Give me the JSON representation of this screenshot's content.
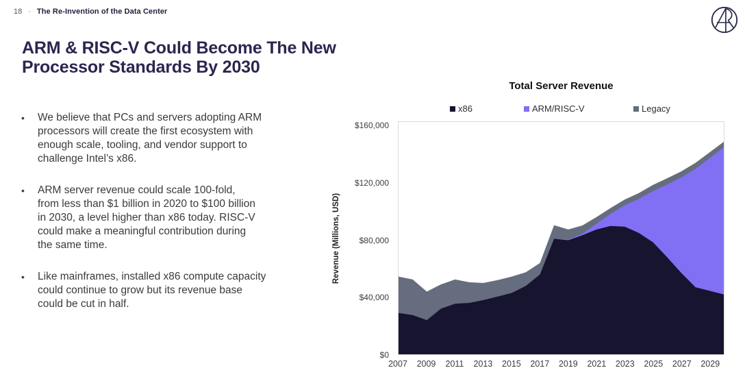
{
  "header": {
    "page_number": "18",
    "separator": "·",
    "booklet_title": "The Re-Invention of the Data Center"
  },
  "logo": {
    "name": "ark-logo"
  },
  "title": {
    "line1": "ARM & RISC-V Could Become The New",
    "line2": "Processor Standards By 2030"
  },
  "bullet_marker": "•",
  "bullets": [
    {
      "lines": [
        "We believe that PCs and servers adopting ARM",
        "processors will create the first ecosystem with",
        "enough scale, tooling, and vendor support to",
        "challenge Intel’s x86."
      ]
    },
    {
      "lines": [
        "ARM server revenue could scale 100-fold,",
        "from less than $1 billion in 2020 to $100 billion",
        "in 2030, a level higher than x86 today. RISC-V",
        "could make a meaningful contribution during",
        "the same time."
      ]
    },
    {
      "lines": [
        "Like mainframes, installed x86 compute capacity",
        "could continue to grow but its revenue base",
        "could be cut in half."
      ]
    }
  ],
  "colors": {
    "x86": "#16142f",
    "arm_risc_v": "#8170f4",
    "legacy": "#666d7e",
    "title_navy": "#2a264f",
    "plot_border": "#d9d9d9"
  },
  "chart_data": {
    "type": "area",
    "stacked": true,
    "title": "Total Server Revenue",
    "xlabel": "",
    "ylabel": "Revenue (Millions, USD)",
    "ylim": [
      0,
      160000
    ],
    "grid": false,
    "legend_position": "top",
    "ytick_values": [
      0,
      40000,
      80000,
      120000,
      160000
    ],
    "ytick_labels": [
      "$0",
      "$40,000",
      "$80,000",
      "$120,000",
      "$160,000"
    ],
    "xticks": [
      2007,
      2009,
      2011,
      2013,
      2015,
      2017,
      2019,
      2021,
      2023,
      2025,
      2027,
      2029
    ],
    "x": [
      2007,
      2008,
      2009,
      2010,
      2011,
      2012,
      2013,
      2014,
      2015,
      2016,
      2017,
      2018,
      2019,
      2020,
      2021,
      2022,
      2023,
      2024,
      2025,
      2026,
      2027,
      2028,
      2029,
      2030
    ],
    "series": [
      {
        "name": "x86",
        "color": "#16142f",
        "values": [
          29000,
          27500,
          24000,
          32000,
          35500,
          36000,
          38000,
          40500,
          43000,
          48000,
          56000,
          81000,
          80000,
          83500,
          87500,
          90000,
          89500,
          85000,
          78500,
          68000,
          57000,
          47000,
          44500,
          42000
        ]
      },
      {
        "name": "ARM/RISC-V",
        "color": "#8170f4",
        "values": [
          0,
          0,
          0,
          0,
          0,
          0,
          0,
          0,
          0,
          0,
          0,
          0,
          500,
          1000,
          4000,
          8500,
          15000,
          24000,
          36000,
          51000,
          67000,
          83000,
          93000,
          103000
        ]
      },
      {
        "name": "Legacy",
        "color": "#666d7e",
        "values": [
          25500,
          25000,
          20000,
          17000,
          17000,
          14500,
          12000,
          11500,
          11500,
          9500,
          8000,
          9500,
          7000,
          5800,
          4700,
          4100,
          4000,
          4100,
          4300,
          4400,
          4300,
          4200,
          4100,
          4000
        ]
      }
    ]
  }
}
